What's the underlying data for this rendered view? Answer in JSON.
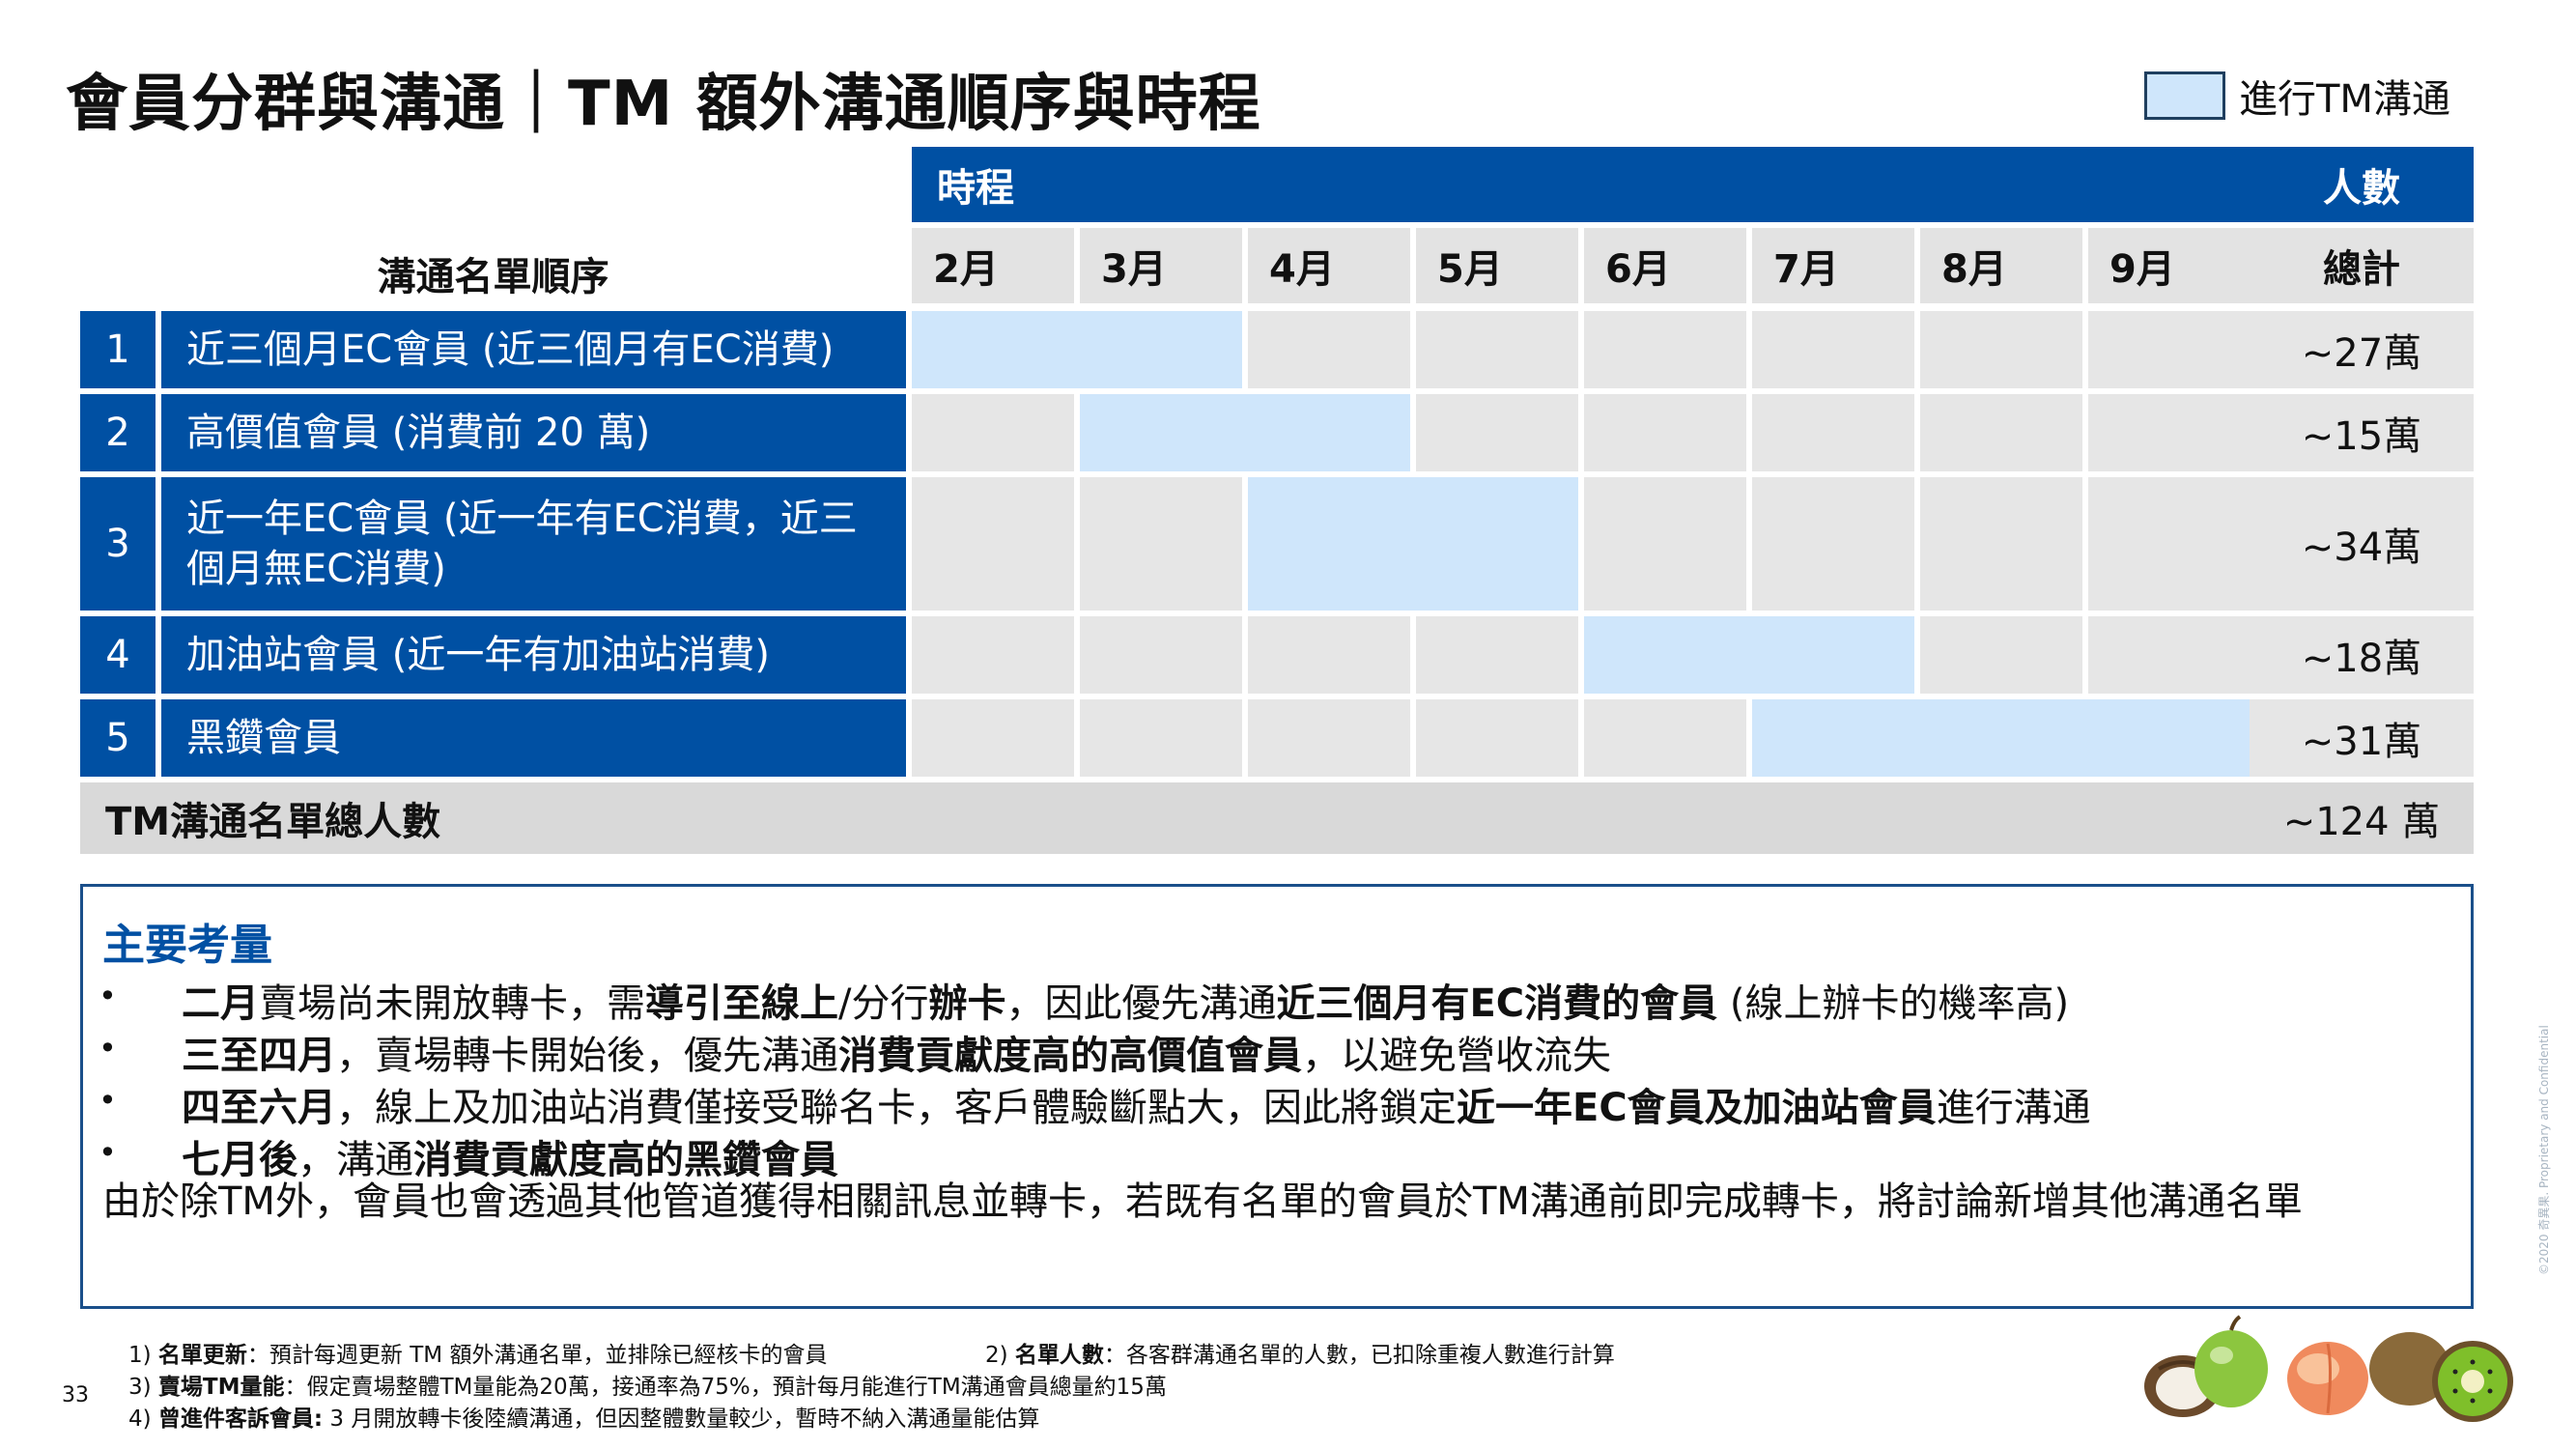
{
  "title": "會員分群與溝通｜TM 額外溝通順序與時程",
  "legend": {
    "label": "進行TM溝通",
    "color": "#cfe6fb"
  },
  "table": {
    "schedule_header": "時程",
    "people_header": "人數",
    "order_header": "溝通名單順序",
    "total_header": "總計",
    "months": [
      "2月",
      "3月",
      "4月",
      "5月",
      "6月",
      "7月",
      "8月",
      "9月"
    ],
    "rows": [
      {
        "num": "1",
        "name": "近三個月EC會員 (近三個月有EC消費)",
        "total": "~27萬",
        "active_months": [
          "2月",
          "3月"
        ]
      },
      {
        "num": "2",
        "name": "高價值會員 (消費前 20 萬)",
        "total": "~15萬",
        "active_months": [
          "3月",
          "4月"
        ]
      },
      {
        "num": "3",
        "name": "近一年EC會員 (近一年有EC消費，近三個月無EC消費)",
        "total": "~34萬",
        "active_months": [
          "4月",
          "5月"
        ]
      },
      {
        "num": "4",
        "name": "加油站會員 (近一年有加油站消費)",
        "total": "~18萬",
        "active_months": [
          "6月",
          "7月"
        ]
      },
      {
        "num": "5",
        "name": "黑鑽會員",
        "total": "~31萬",
        "active_months": [
          "7月",
          "8月",
          "9月"
        ]
      }
    ],
    "summary_label": "TM溝通名單總人數",
    "summary_value": "~124 萬"
  },
  "considerations": {
    "title": "主要考量",
    "bullets": [
      [
        {
          "text": "二月",
          "bold": true
        },
        {
          "text": "賣場尚未開放轉卡，需",
          "bold": false
        },
        {
          "text": "導引至線上",
          "bold": true
        },
        {
          "text": "/分行",
          "bold": false
        },
        {
          "text": "辦卡",
          "bold": true
        },
        {
          "text": "，因此優先溝通",
          "bold": false
        },
        {
          "text": "近三個月有EC消費的會員",
          "bold": true
        },
        {
          "text": " (線上辦卡的機率高)",
          "bold": false
        }
      ],
      [
        {
          "text": "三至四月",
          "bold": true
        },
        {
          "text": "，賣場轉卡開始後，優先溝通",
          "bold": false
        },
        {
          "text": "消費貢獻度高的高價值會員",
          "bold": true
        },
        {
          "text": "，以避免營收流失",
          "bold": false
        }
      ],
      [
        {
          "text": "四至六月",
          "bold": true
        },
        {
          "text": "，線上及加油站消費僅接受聯名卡，客戶體驗斷點大，因此將鎖定",
          "bold": false
        },
        {
          "text": "近一年EC會員及加油站會員",
          "bold": true
        },
        {
          "text": "進行溝通",
          "bold": false
        }
      ],
      [
        {
          "text": "七月後",
          "bold": true
        },
        {
          "text": "，溝通",
          "bold": false
        },
        {
          "text": "消費貢獻度高的黑鑽會員",
          "bold": true
        }
      ]
    ],
    "paragraph": "由於除TM外，會員也會透過其他管道獲得相關訊息並轉卡，若既有名單的會員於TM溝通前即完成轉卡，將討論新增其他溝通名單"
  },
  "footnotes": [
    {
      "prefix": "1) ",
      "bold": "名單更新",
      "text": "：預計每週更新 TM 額外溝通名單，並排除已經核卡的會員"
    },
    {
      "prefix": "2) ",
      "bold": "名單人數",
      "text": "：各客群溝通名單的人數，已扣除重複人數進行計算"
    },
    {
      "prefix": "3) ",
      "bold": "賣場TM量能",
      "text": "：假定賣場整體TM量能為20萬，接通率為75%，預計每月能進行TM溝通會員總量約15萬"
    },
    {
      "prefix": "4) ",
      "bold": "曾進件客訴會員:",
      "text": " 3 月開放轉卡後陸續溝通，但因整體數量較少，暫時不納入溝通量能估算"
    }
  ],
  "page_number": "33",
  "side_text": "©2020 奇異果. Proprietary and Confidential",
  "fruit_icons": [
    "coconut-icon",
    "green-apple-icon",
    "peach-icon",
    "kiwi-icon"
  ]
}
